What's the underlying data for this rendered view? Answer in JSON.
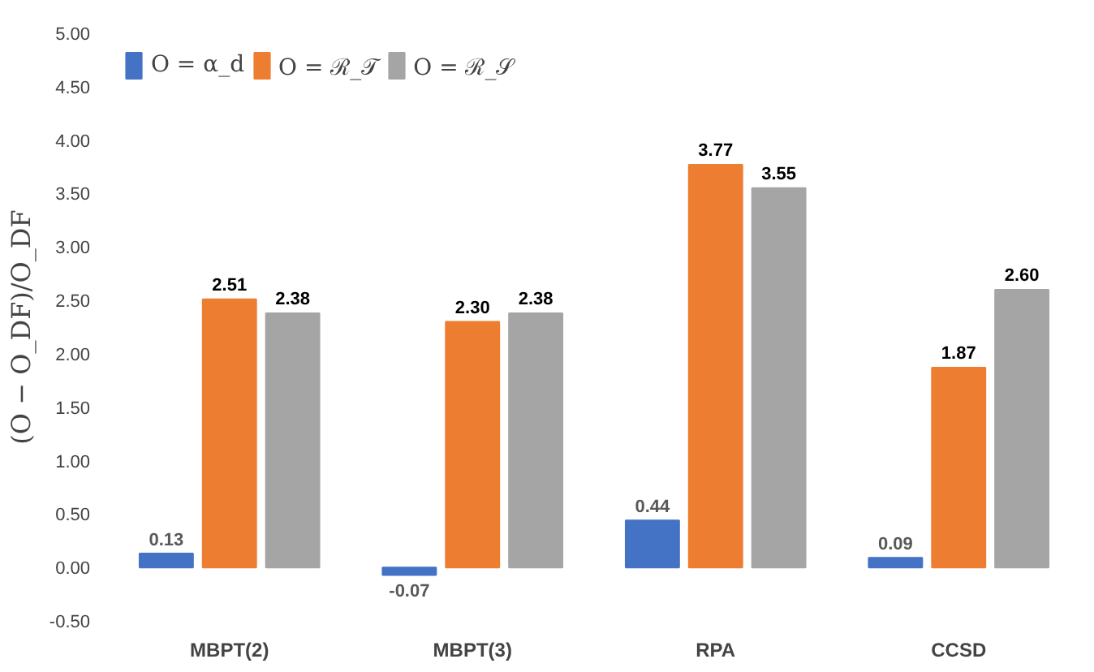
{
  "chart_data": {
    "type": "bar",
    "ylabel": "(O − O_DF)/O_DF",
    "categories": [
      "MBPT(2)",
      "MBPT(3)",
      "RPA",
      "CCSD"
    ],
    "series": [
      {
        "name": "O = α_d",
        "color": "#4472c4",
        "values": [
          0.13,
          -0.07,
          0.44,
          0.09
        ],
        "value_labels": [
          "0.13",
          "-0.07",
          "0.44",
          "0.09"
        ]
      },
      {
        "name": "O = ℛ_𝒯",
        "color": "#ed7d31",
        "values": [
          2.51,
          2.3,
          3.77,
          1.87
        ],
        "value_labels": [
          "2.51",
          "2.30",
          "3.77",
          "1.87"
        ]
      },
      {
        "name": "O = ℛ_𝒮",
        "color": "#a5a5a5",
        "values": [
          2.38,
          2.38,
          3.55,
          2.6
        ],
        "value_labels": [
          "2.38",
          "2.38",
          "3.55",
          "2.60"
        ]
      }
    ],
    "ylim": [
      -0.5,
      5.0
    ],
    "yticks": [
      {
        "value": -0.5,
        "label": "-0.50"
      },
      {
        "value": 0,
        "label": "0.00"
      },
      {
        "value": 0.5,
        "label": "0.50"
      },
      {
        "value": 1.0,
        "label": "1.00"
      },
      {
        "value": 1.5,
        "label": "1.50"
      },
      {
        "value": 2.0,
        "label": "2.00"
      },
      {
        "value": 2.5,
        "label": "2.50"
      },
      {
        "value": 3.0,
        "label": "3.00"
      },
      {
        "value": 3.5,
        "label": "3.50"
      },
      {
        "value": 4.0,
        "label": "4.00"
      },
      {
        "value": 4.5,
        "label": "4.50"
      },
      {
        "value": 5.0,
        "label": "5.00"
      }
    ],
    "grid": false,
    "legend": "top left"
  }
}
